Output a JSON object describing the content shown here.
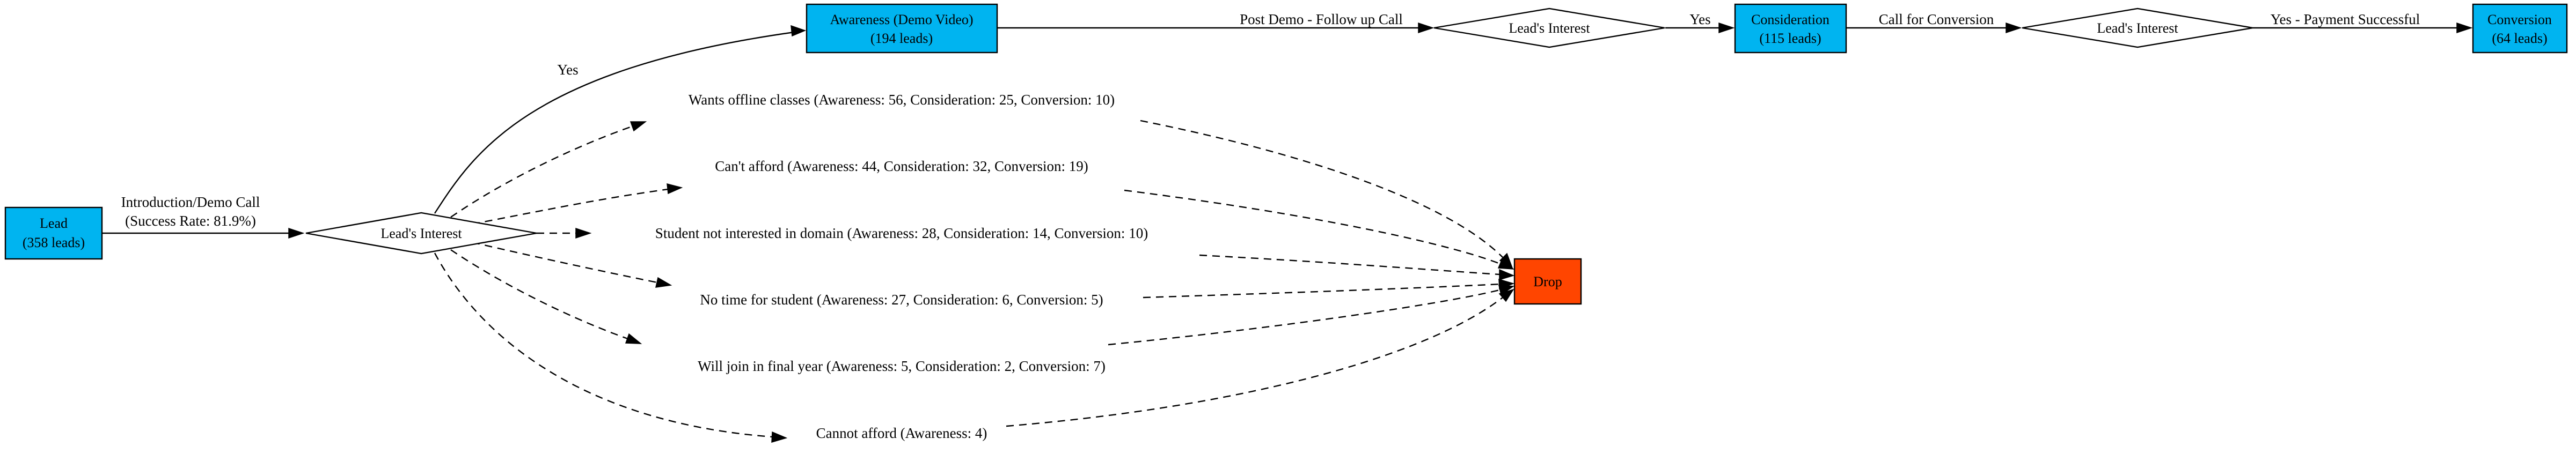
{
  "colors": {
    "stage_fill": "#00b4f0",
    "drop_fill": "#ff4500",
    "stroke": "#000000",
    "background": "#ffffff"
  },
  "nodes": {
    "lead": {
      "line1": "Lead",
      "line2": "(358 leads)"
    },
    "interest_main": {
      "label": "Lead's Interest"
    },
    "awareness": {
      "line1": "Awareness (Demo Video)",
      "line2": "(194 leads)"
    },
    "interest_post_demo": {
      "label": "Lead's Interest"
    },
    "consideration": {
      "line1": "Consideration",
      "line2": "(115 leads)"
    },
    "interest_conversion": {
      "label": "Lead's Interest"
    },
    "conversion": {
      "line1": "Conversion",
      "line2": "(64 leads)"
    },
    "drop": {
      "label": "Drop"
    }
  },
  "edges": {
    "intro_call": {
      "line1": "Introduction/Demo Call",
      "line2": "(Success Rate: 81.9%)"
    },
    "to_awareness": "Yes",
    "post_demo": "Post Demo - Follow up Call",
    "to_consideration": "Yes",
    "call_conversion": "Call for Conversion",
    "payment": "Yes - Payment Successful"
  },
  "drop_reasons": [
    {
      "label": "Wants offline classes (Awareness: 56, Consideration: 25, Conversion: 10)"
    },
    {
      "label": "Can't afford (Awareness: 44, Consideration: 32, Conversion: 19)"
    },
    {
      "label": "Student not interested in domain (Awareness: 28, Consideration: 14, Conversion: 10)"
    },
    {
      "label": "No time for student (Awareness: 27, Consideration: 6, Conversion: 5)"
    },
    {
      "label": "Will join in final year (Awareness: 5, Consideration: 2, Conversion: 7)"
    },
    {
      "label": "Cannot afford (Awareness: 4)"
    }
  ]
}
